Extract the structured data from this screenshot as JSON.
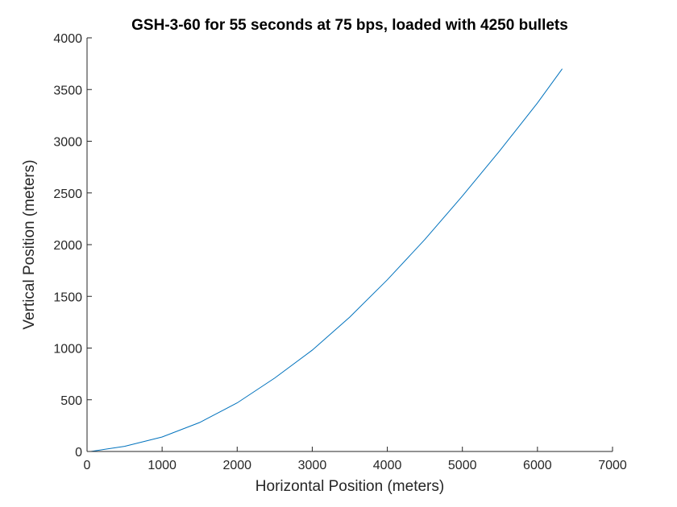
{
  "chart_data": {
    "type": "line",
    "title": "GSH-3-60 for 55 seconds at 75 bps, loaded with 4250 bullets",
    "xlabel": "Horizontal Position (meters)",
    "ylabel": "Vertical Position (meters)",
    "xlim": [
      0,
      7000
    ],
    "ylim": [
      0,
      4000
    ],
    "xticks": [
      "0",
      "1000",
      "2000",
      "3000",
      "4000",
      "5000",
      "6000",
      "7000"
    ],
    "yticks": [
      "0",
      "500",
      "1000",
      "1500",
      "2000",
      "2500",
      "3000",
      "3500",
      "4000"
    ],
    "grid": false,
    "series": [
      {
        "color": "#0072BD",
        "x": [
          50,
          500,
          1000,
          1500,
          2000,
          2500,
          3000,
          3500,
          4000,
          4500,
          5000,
          5500,
          6000,
          6330
        ],
        "y": [
          0,
          50,
          140,
          280,
          470,
          710,
          980,
          1300,
          1660,
          2050,
          2470,
          2910,
          3370,
          3700
        ]
      }
    ]
  }
}
